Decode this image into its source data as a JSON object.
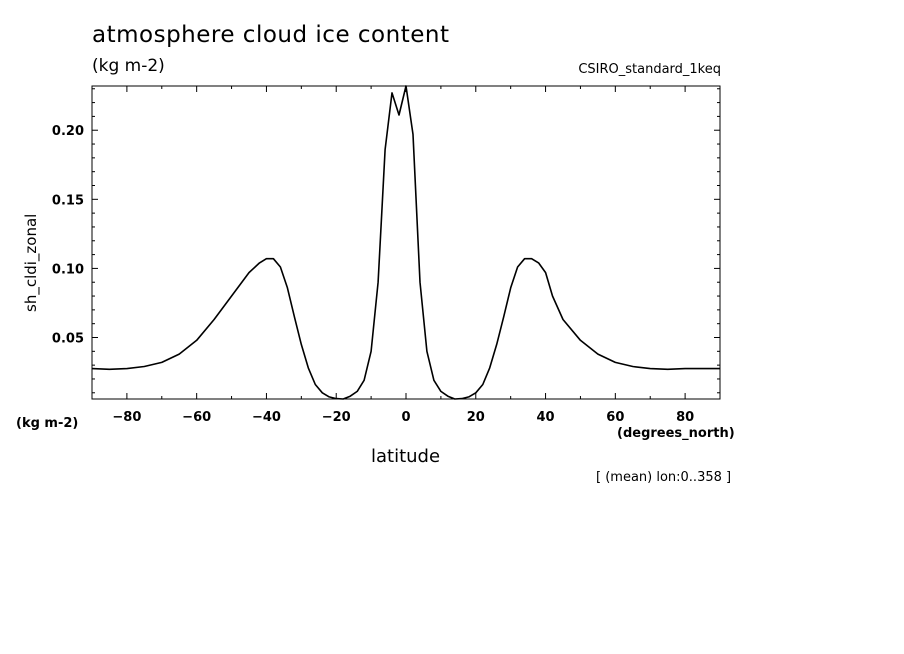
{
  "header": {
    "title": "atmosphere cloud ice content",
    "subtitle": "(kg m-2)",
    "run_label": "CSIRO_standard_1keq"
  },
  "axes": {
    "y_unit": "(kg m-2)",
    "x_unit": "(degrees_north)",
    "x_label": "latitude",
    "y_label": "sh_cldi_zonal"
  },
  "footnote": "[ (mean) lon:0..358 ]",
  "chart_data": {
    "type": "line",
    "title": "atmosphere cloud ice content",
    "subtitle": "(kg m-2)",
    "xlabel": "latitude",
    "ylabel": "sh_cldi_zonal",
    "xlim": [
      -90,
      90
    ],
    "ylim": [
      0.0055,
      0.232
    ],
    "xticks": [
      -80,
      -60,
      -40,
      -20,
      0,
      20,
      40,
      60,
      80
    ],
    "xtick_labels": [
      "-80",
      "-60",
      "-40",
      "-20",
      "0",
      "20",
      "40",
      "60",
      "80"
    ],
    "yticks": [
      0.05,
      0.1,
      0.15,
      0.2
    ],
    "ytick_labels": [
      "0.05",
      "0.10",
      "0.15",
      "0.20"
    ],
    "grid": false,
    "series": [
      {
        "color": "#000000",
        "x": [
          -90,
          -85,
          -80,
          -75,
          -70,
          -65,
          -60,
          -55,
          -50,
          -45,
          -42,
          -40,
          -38,
          -36,
          -34,
          -32,
          -30,
          -28,
          -26,
          -24,
          -22,
          -20,
          -18,
          -16,
          -14,
          -12,
          -10,
          -8,
          -6,
          -4,
          -2,
          0,
          2,
          4,
          6,
          8,
          10,
          12,
          14,
          16,
          18,
          20,
          22,
          24,
          26,
          28,
          30,
          32,
          34,
          36,
          38,
          40,
          42,
          45,
          50,
          55,
          60,
          65,
          70,
          75,
          80,
          85,
          90
        ],
        "y": [
          0.0275,
          0.027,
          0.0275,
          0.029,
          0.032,
          0.038,
          0.048,
          0.063,
          0.08,
          0.097,
          0.104,
          0.107,
          0.107,
          0.101,
          0.086,
          0.065,
          0.045,
          0.028,
          0.016,
          0.01,
          0.007,
          0.0058,
          0.0055,
          0.0075,
          0.011,
          0.019,
          0.04,
          0.09,
          0.186,
          0.227,
          0.211,
          0.232,
          0.197,
          0.09,
          0.04,
          0.019,
          0.011,
          0.0075,
          0.0055,
          0.0058,
          0.007,
          0.01,
          0.016,
          0.028,
          0.045,
          0.065,
          0.086,
          0.101,
          0.107,
          0.107,
          0.104,
          0.097,
          0.08,
          0.063,
          0.048,
          0.038,
          0.032,
          0.029,
          0.0275,
          0.027,
          0.0275,
          0.0275,
          0.0275
        ]
      }
    ]
  }
}
